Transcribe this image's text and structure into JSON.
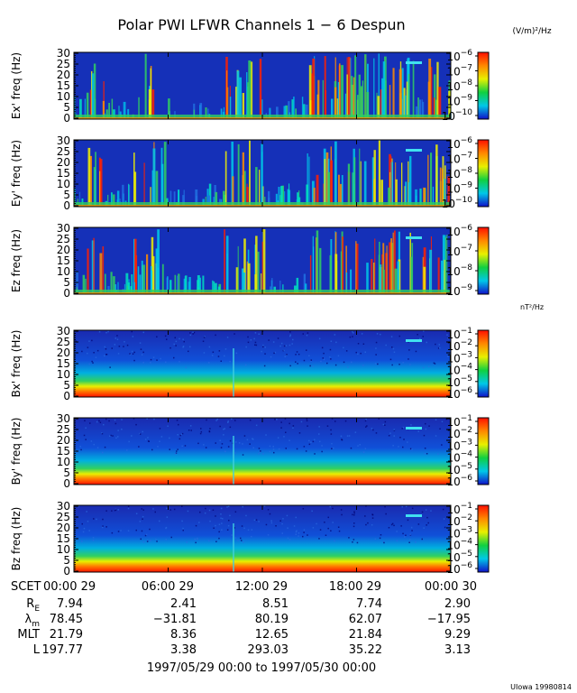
{
  "chart_data": {
    "type": "heatmap",
    "title": "Polar PWI LFWR Channels 1 − 6 Despun",
    "groups": [
      {
        "unit_label": "(V/m)²/Hz",
        "panels": [
          {
            "ylabel": "Ex' freq  (Hz)",
            "yticks": [
              "0",
              "5",
              "10",
              "15",
              "20",
              "25",
              "30"
            ],
            "ylim": [
              0,
              30
            ],
            "colorbar_ticks": [
              {
                "base": "10",
                "exp": "−6"
              },
              {
                "base": "10",
                "exp": "−7"
              },
              {
                "base": "10",
                "exp": "−8"
              },
              {
                "base": "10",
                "exp": "−9"
              },
              {
                "base": "10",
                "exp": "−10"
              }
            ]
          },
          {
            "ylabel": "Ey' freq  (Hz)",
            "yticks": [
              "0",
              "5",
              "10",
              "15",
              "20",
              "25",
              "30"
            ],
            "ylim": [
              0,
              30
            ],
            "colorbar_ticks": [
              {
                "base": "10",
                "exp": "−6"
              },
              {
                "base": "10",
                "exp": "−7"
              },
              {
                "base": "10",
                "exp": "−8"
              },
              {
                "base": "10",
                "exp": "−9"
              },
              {
                "base": "10",
                "exp": "−10"
              }
            ]
          },
          {
            "ylabel": "Ez  freq  (Hz)",
            "yticks": [
              "0",
              "5",
              "10",
              "15",
              "20",
              "25",
              "30"
            ],
            "ylim": [
              0,
              30
            ],
            "colorbar_ticks": [
              {
                "base": "10",
                "exp": "−6"
              },
              {
                "base": "10",
                "exp": "−7"
              },
              {
                "base": "10",
                "exp": "−8"
              },
              {
                "base": "10",
                "exp": "−9"
              }
            ]
          }
        ]
      },
      {
        "unit_label": "nT²/Hz",
        "panels": [
          {
            "ylabel": "Bx' freq  (Hz)",
            "yticks": [
              "0",
              "5",
              "10",
              "15",
              "20",
              "25",
              "30"
            ],
            "ylim": [
              0,
              30
            ],
            "colorbar_ticks": [
              {
                "base": "10",
                "exp": "−1"
              },
              {
                "base": "10",
                "exp": "−2"
              },
              {
                "base": "10",
                "exp": "−3"
              },
              {
                "base": "10",
                "exp": "−4"
              },
              {
                "base": "10",
                "exp": "−5"
              },
              {
                "base": "10",
                "exp": "−6"
              }
            ]
          },
          {
            "ylabel": "By' freq  (Hz)",
            "yticks": [
              "0",
              "5",
              "10",
              "15",
              "20",
              "25",
              "30"
            ],
            "ylim": [
              0,
              30
            ],
            "colorbar_ticks": [
              {
                "base": "10",
                "exp": "−1"
              },
              {
                "base": "10",
                "exp": "−2"
              },
              {
                "base": "10",
                "exp": "−3"
              },
              {
                "base": "10",
                "exp": "−4"
              },
              {
                "base": "10",
                "exp": "−5"
              },
              {
                "base": "10",
                "exp": "−6"
              }
            ]
          },
          {
            "ylabel": "Bz  freq  (Hz)",
            "yticks": [
              "0",
              "5",
              "10",
              "15",
              "20",
              "25",
              "30"
            ],
            "ylim": [
              0,
              30
            ],
            "colorbar_ticks": [
              {
                "base": "10",
                "exp": "−1"
              },
              {
                "base": "10",
                "exp": "−2"
              },
              {
                "base": "10",
                "exp": "−3"
              },
              {
                "base": "10",
                "exp": "−4"
              },
              {
                "base": "10",
                "exp": "−5"
              },
              {
                "base": "10",
                "exp": "−6"
              }
            ]
          }
        ]
      }
    ],
    "x_axis": {
      "label": "SCET",
      "ticks": [
        "00:00 29",
        "06:00 29",
        "12:00 29",
        "18:00 29",
        "00:00 30"
      ]
    },
    "ephemeris": [
      {
        "label": "R",
        "sub": "E",
        "values": [
          "7.94",
          "2.41",
          "8.51",
          "7.74",
          "2.90"
        ]
      },
      {
        "label": "λ",
        "sub": "m",
        "values": [
          "78.45",
          "−31.81",
          "80.19",
          "62.07",
          "−17.95"
        ]
      },
      {
        "label": "MLT",
        "sub": "",
        "values": [
          "21.79",
          "8.36",
          "12.65",
          "21.84",
          "9.29"
        ]
      },
      {
        "label": "L",
        "sub": "",
        "values": [
          "197.77",
          "3.38",
          "293.03",
          "35.22",
          "3.13"
        ]
      }
    ],
    "date_range": "1997/05/29 00:00 to 1997/05/30 00:00",
    "footer": "UIowa 19980814"
  }
}
